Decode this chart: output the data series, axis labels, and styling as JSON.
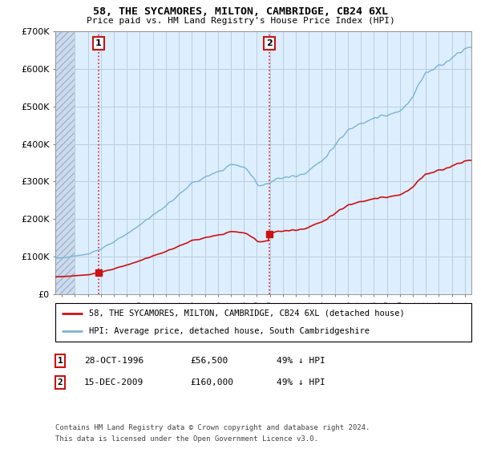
{
  "title": "58, THE SYCAMORES, MILTON, CAMBRIDGE, CB24 6XL",
  "subtitle": "Price paid vs. HM Land Registry's House Price Index (HPI)",
  "ylim": [
    0,
    700000
  ],
  "ytick_labels": [
    "£0",
    "£100K",
    "£200K",
    "£300K",
    "£400K",
    "£500K",
    "£600K",
    "£700K"
  ],
  "hpi_color": "#7ab3d4",
  "price_color": "#cc1111",
  "sale1_date_num": 1996.83,
  "sale1_price": 56500,
  "sale2_date_num": 2009.96,
  "sale2_price": 160000,
  "legend_line1": "58, THE SYCAMORES, MILTON, CAMBRIDGE, CB24 6XL (detached house)",
  "legend_line2": "HPI: Average price, detached house, South Cambridgeshire",
  "date1_str": "28-OCT-1996",
  "price1_str": "£56,500",
  "pct1_str": "49% ↓ HPI",
  "date2_str": "15-DEC-2009",
  "price2_str": "£160,000",
  "pct2_str": "49% ↓ HPI",
  "footnote1": "Contains HM Land Registry data © Crown copyright and database right 2024.",
  "footnote2": "This data is licensed under the Open Government Licence v3.0.",
  "bg_color": "#ddeeff",
  "grid_color": "#bbccdd",
  "xlim_start": 1993.5,
  "xlim_end": 2025.5,
  "hatch_end": 1995.0
}
